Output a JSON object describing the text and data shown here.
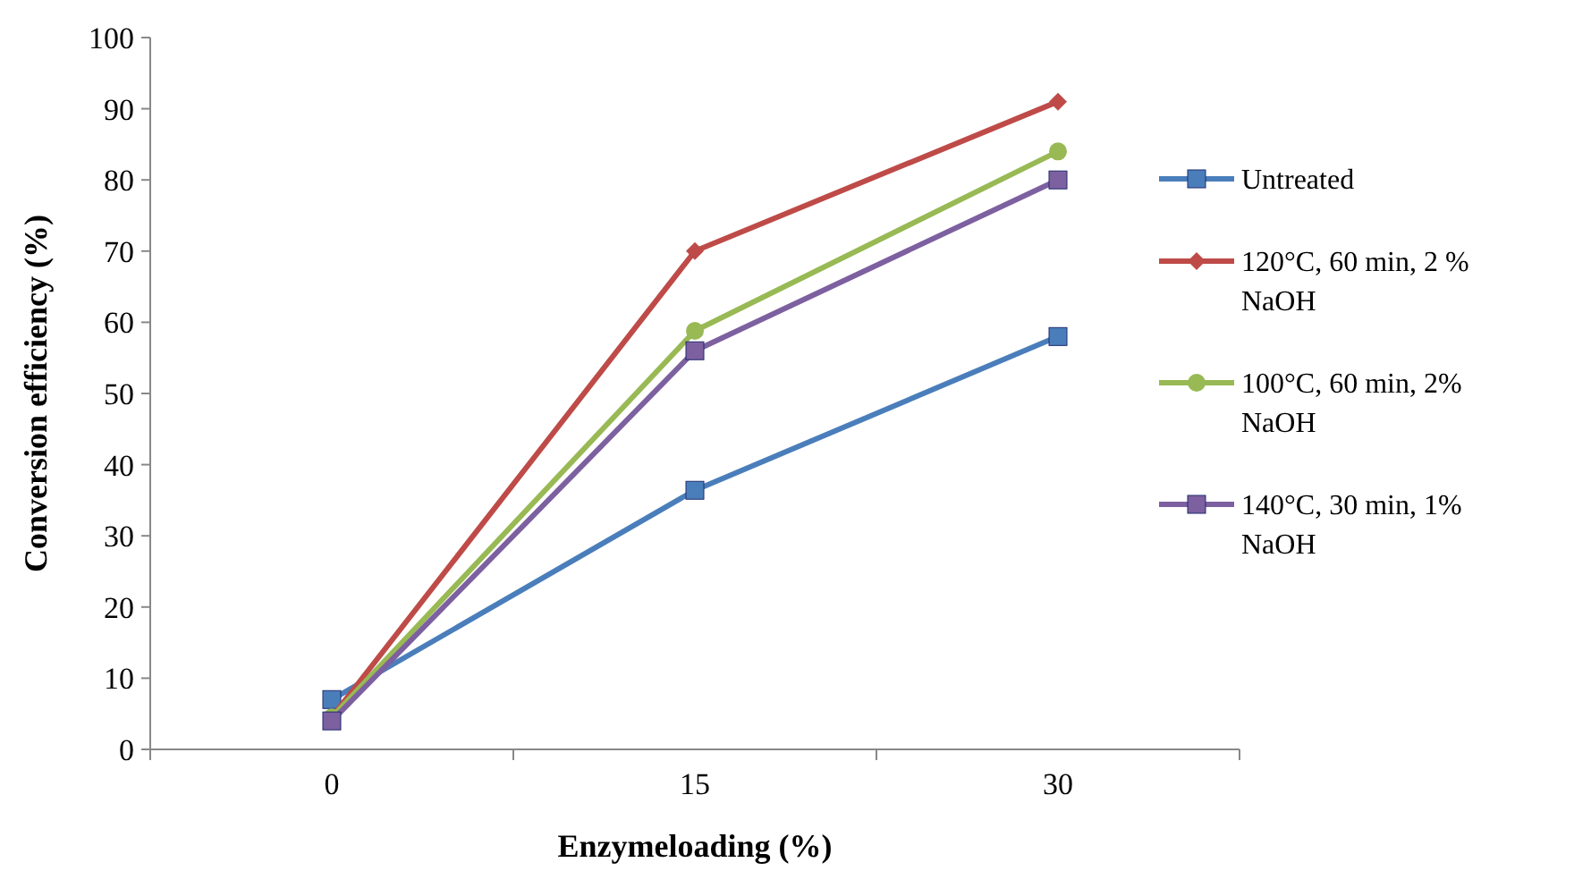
{
  "chart_data": {
    "type": "line",
    "xlabel": "Enzymeloading (%)",
    "ylabel": "Conversion efficiency (%)",
    "categories": [
      "0",
      "15",
      "30"
    ],
    "ylim": [
      0,
      100
    ],
    "yticks": [
      0,
      10,
      20,
      30,
      40,
      50,
      60,
      70,
      80,
      90,
      100
    ],
    "grid": false,
    "legend": "right",
    "series": [
      {
        "name": "Untreated",
        "color": "#4a7ebb",
        "marker": "square",
        "values": [
          7,
          36.4,
          58
        ]
      },
      {
        "name": "120°C, 60 min, 2 % NaOH",
        "color": "#be4b48",
        "marker": "diamond",
        "values": [
          4.5,
          70,
          91
        ]
      },
      {
        "name": "100°C, 60 min, 2% NaOH",
        "color": "#98b954",
        "marker": "circle",
        "values": [
          4.5,
          58.8,
          84
        ]
      },
      {
        "name": "140°C, 30 min, 1% NaOH",
        "color": "#7d60a0",
        "marker": "square",
        "values": [
          4,
          56,
          80
        ]
      }
    ]
  }
}
